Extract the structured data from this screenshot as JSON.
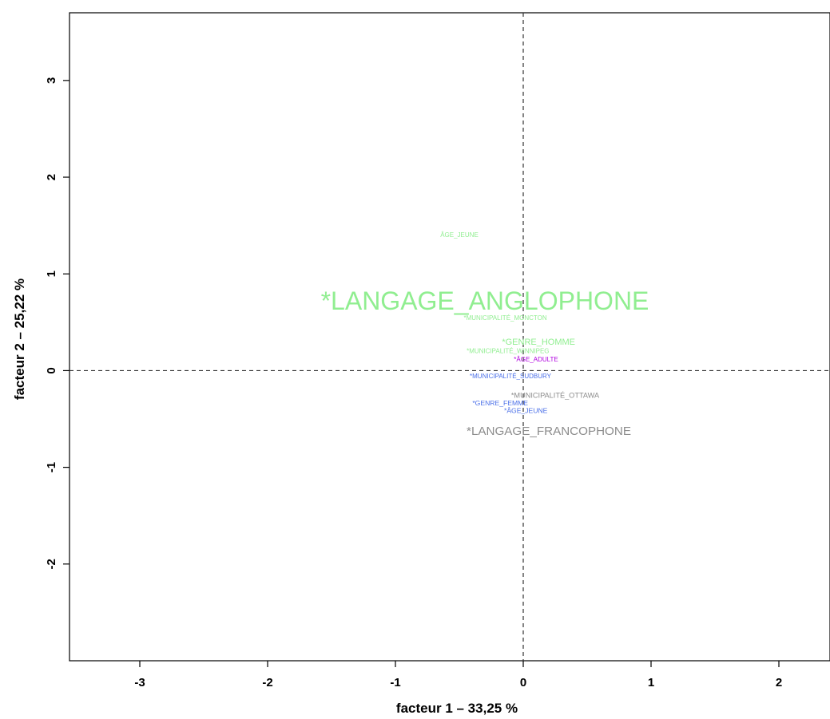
{
  "chart_data": {
    "type": "scatter",
    "title": "",
    "xlabel": "facteur 1  –  33,25 %",
    "ylabel": "facteur 2  –  25,22 %",
    "xlim": [
      -3.55,
      2.4
    ],
    "ylim": [
      -3.0,
      3.7
    ],
    "xticks": [
      -3,
      -2,
      -1,
      0,
      1,
      2
    ],
    "yticks": [
      -2,
      -1,
      0,
      1,
      2,
      3
    ],
    "reference_lines": {
      "x": 0,
      "y": 0,
      "style": "dashed"
    },
    "grid": false,
    "colors": {
      "green": "#90ee90",
      "blue": "#4a6fe8",
      "gray": "#8c8c8c",
      "purple": "#b000e0"
    },
    "points": [
      {
        "label": "ÂGE_JEUNE",
        "x": -0.5,
        "y": 1.4,
        "color": "green",
        "weight": 1
      },
      {
        "label": "*LANGAGE_ANGLOPHONE",
        "x": -0.3,
        "y": 0.7,
        "color": "green",
        "weight": 5
      },
      {
        "label": "*MUNICIPALITÉ_MONCTON",
        "x": -0.14,
        "y": 0.54,
        "color": "green",
        "weight": 1
      },
      {
        "label": "*GENRE_HOMME",
        "x": 0.12,
        "y": 0.29,
        "color": "green",
        "weight": 1.5
      },
      {
        "label": "*MUNICIPALITÉ_WINNIPEG",
        "x": -0.12,
        "y": 0.2,
        "color": "green",
        "weight": 1
      },
      {
        "label": "*ÂGE_ADULTE",
        "x": 0.1,
        "y": 0.11,
        "color": "purple",
        "weight": 1
      },
      {
        "label": "*MUNICIPALITÉ_SUDBURY",
        "x": -0.1,
        "y": -0.06,
        "color": "blue",
        "weight": 1
      },
      {
        "label": "*MUNICIPALITÉ_OTTAWA",
        "x": 0.25,
        "y": -0.26,
        "color": "gray",
        "weight": 1.2
      },
      {
        "label": "*GENRE_FEMME",
        "x": -0.18,
        "y": -0.34,
        "color": "blue",
        "weight": 1.1
      },
      {
        "label": "*ÂGE_JEUNE",
        "x": 0.02,
        "y": -0.42,
        "color": "blue",
        "weight": 1.1
      },
      {
        "label": "*LANGAGE_FRANCOPHONE",
        "x": 0.2,
        "y": -0.63,
        "color": "gray",
        "weight": 2.2
      }
    ]
  }
}
